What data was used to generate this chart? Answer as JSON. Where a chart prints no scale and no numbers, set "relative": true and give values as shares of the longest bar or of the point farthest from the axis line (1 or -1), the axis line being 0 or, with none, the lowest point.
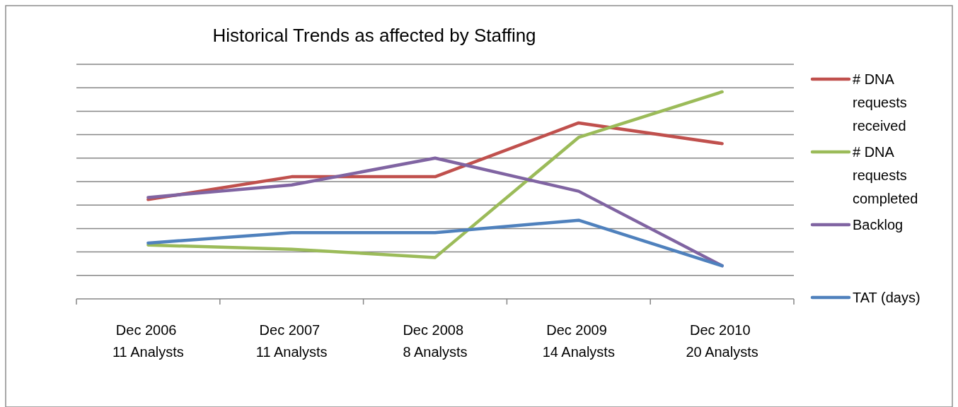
{
  "chart_data": {
    "type": "line",
    "title": "Historical Trends as affected by Staffing",
    "categories": [
      "Dec 2006 11 Analysts",
      "Dec 2007 11 Analysts",
      "Dec 2008 8 Analysts",
      "Dec 2009 14 Analysts",
      "Dec 2010 20 Analysts"
    ],
    "relative": true,
    "grid": true,
    "legend": "right",
    "line_style": "solid",
    "marker": "none",
    "series": [
      {
        "name": "# DNA requests received",
        "color": "#c0504d",
        "values": [
          0.48,
          0.59,
          0.59,
          0.85,
          0.75
        ]
      },
      {
        "name": "# DNA requests completed",
        "color": "#9bbb59",
        "values": [
          0.26,
          0.24,
          0.2,
          0.78,
          1
        ]
      },
      {
        "name": "Backlog",
        "color": "#8064a2",
        "values": [
          0.49,
          0.55,
          0.68,
          0.52,
          0.16
        ]
      },
      {
        "name": "TAT (days)",
        "color": "#4f81bd",
        "values": [
          0.27,
          0.32,
          0.32,
          0.38,
          0.16
        ]
      }
    ]
  }
}
